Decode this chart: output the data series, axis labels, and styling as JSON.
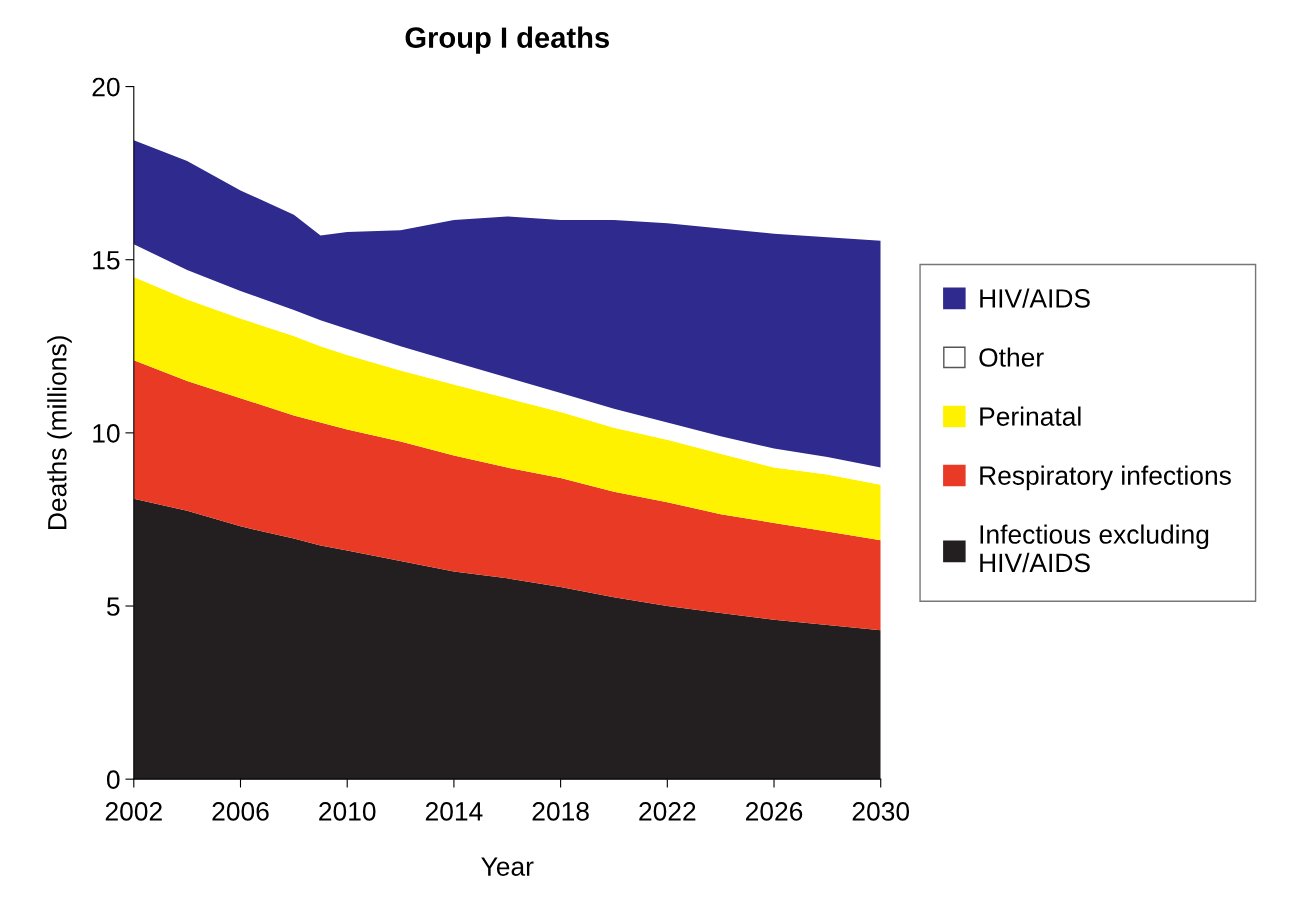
{
  "chart_data": {
    "type": "area",
    "stacked": true,
    "title": "Group I deaths",
    "xlabel": "Year",
    "ylabel": "Deaths (millions)",
    "x": [
      2002,
      2004,
      2006,
      2008,
      2009,
      2010,
      2012,
      2014,
      2016,
      2018,
      2020,
      2022,
      2024,
      2026,
      2028,
      2030
    ],
    "series": [
      {
        "name": "Infectious excluding HIV/AIDS",
        "color": "#231f20",
        "values": [
          8.1,
          7.75,
          7.3,
          6.95,
          6.75,
          6.6,
          6.3,
          6.0,
          5.8,
          5.55,
          5.25,
          5.0,
          4.8,
          4.6,
          4.45,
          4.3
        ]
      },
      {
        "name": "Respiratory infections",
        "color": "#e83a24",
        "values": [
          4.0,
          3.75,
          3.7,
          3.55,
          3.55,
          3.5,
          3.45,
          3.35,
          3.2,
          3.15,
          3.05,
          3.0,
          2.85,
          2.8,
          2.7,
          2.6
        ]
      },
      {
        "name": "Perinatal",
        "color": "#fff200",
        "values": [
          2.4,
          2.35,
          2.3,
          2.3,
          2.2,
          2.15,
          2.05,
          2.05,
          2.0,
          1.9,
          1.85,
          1.8,
          1.75,
          1.6,
          1.65,
          1.6
        ]
      },
      {
        "name": "Other",
        "color": "#ffffff",
        "values": [
          0.95,
          0.85,
          0.8,
          0.75,
          0.75,
          0.75,
          0.7,
          0.65,
          0.6,
          0.55,
          0.55,
          0.5,
          0.5,
          0.55,
          0.5,
          0.5
        ]
      },
      {
        "name": "HIV/AIDS",
        "color": "#2e2a8e",
        "values": [
          3.0,
          3.15,
          2.9,
          2.75,
          2.45,
          2.8,
          3.35,
          4.1,
          4.65,
          5.0,
          5.45,
          5.75,
          6.0,
          6.2,
          6.35,
          6.55
        ]
      }
    ],
    "xlim": [
      2002,
      2030
    ],
    "xticks": [
      2002,
      2006,
      2010,
      2014,
      2018,
      2022,
      2026,
      2030
    ],
    "ylim": [
      0,
      20
    ],
    "yticks": [
      0,
      5,
      10,
      15,
      20
    ],
    "grid": false,
    "legend": "right"
  }
}
